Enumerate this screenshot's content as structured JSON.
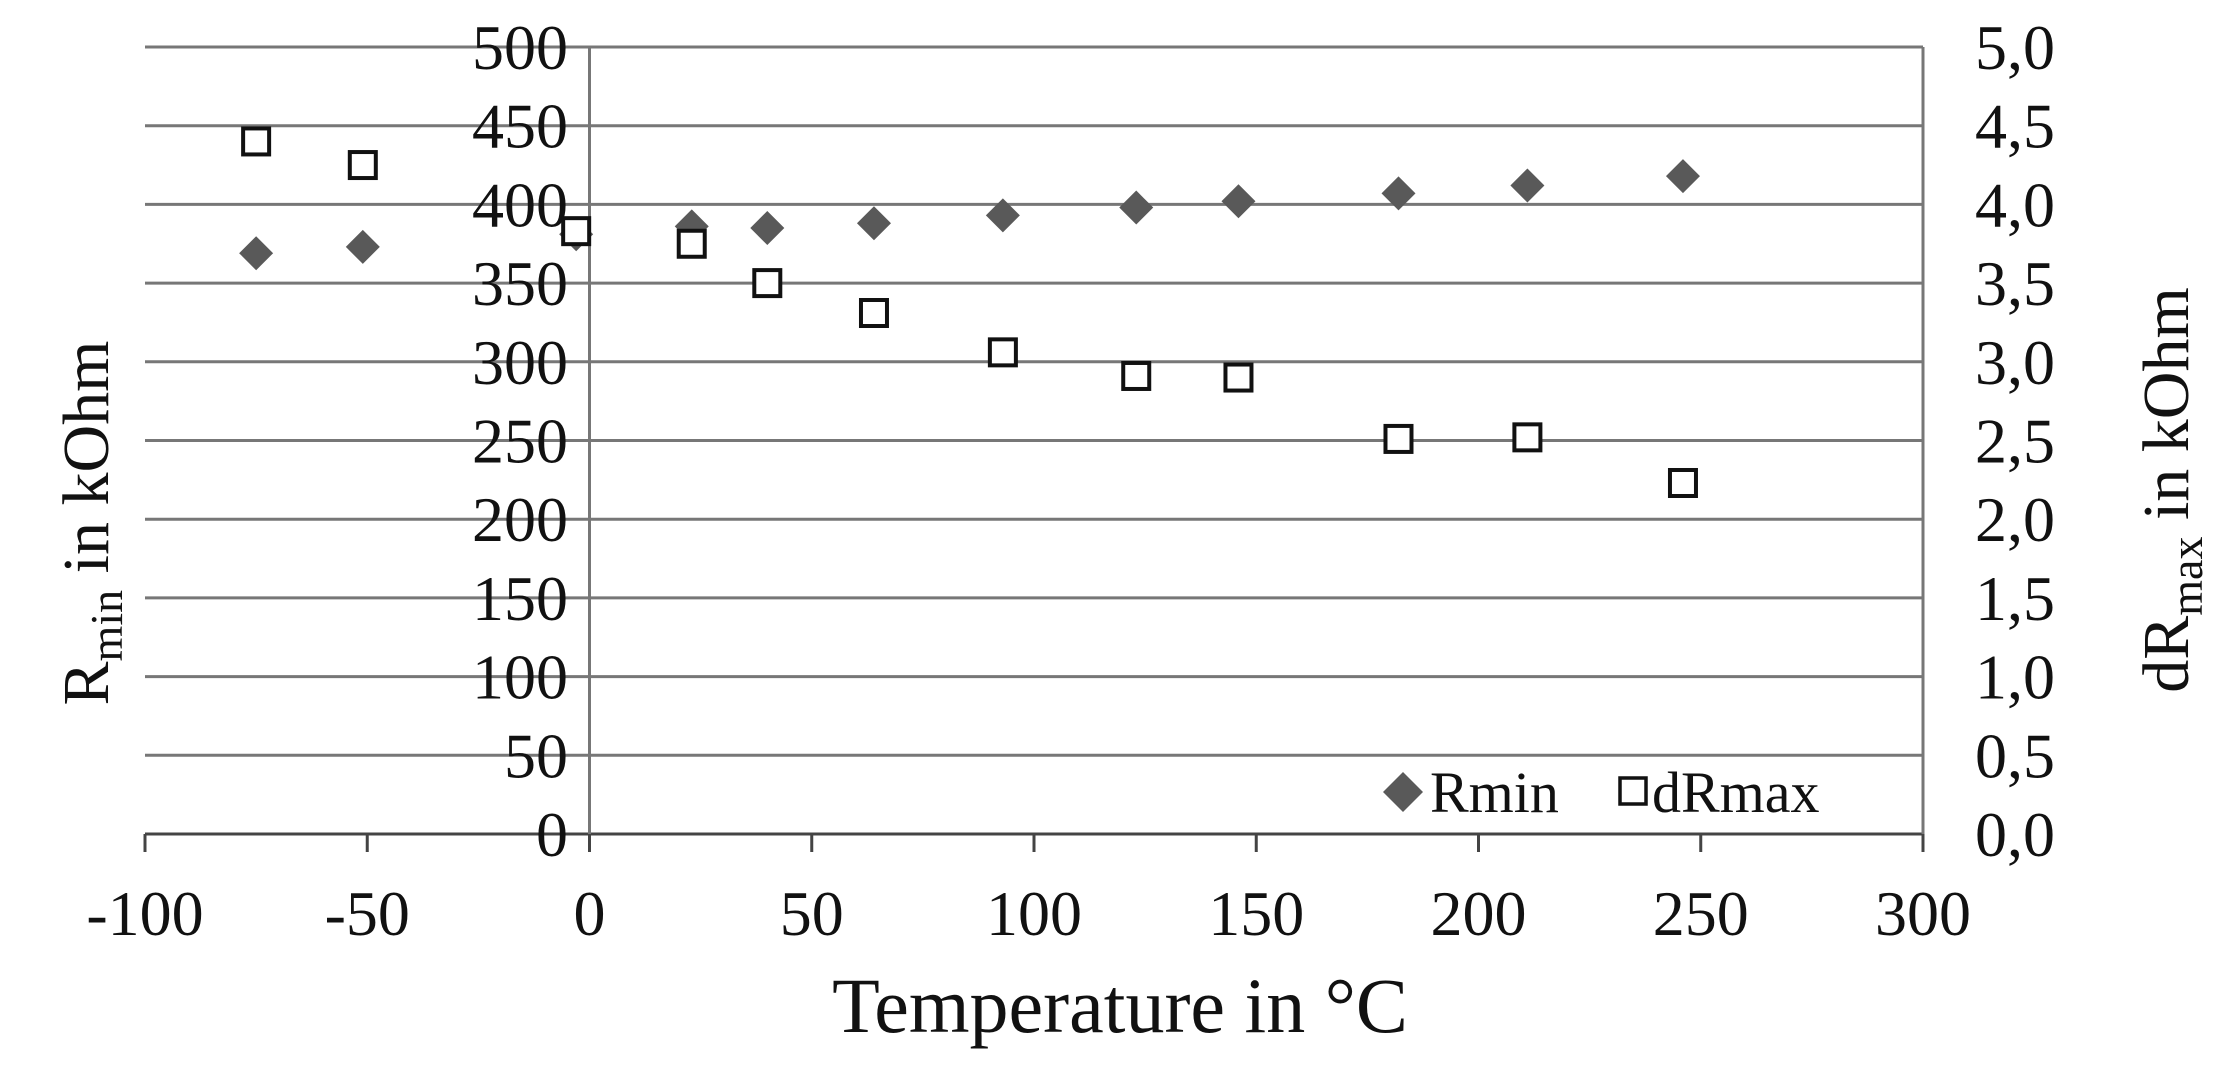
{
  "chart_data": {
    "type": "scatter",
    "xlabel": "Temperature in °C",
    "ylabel": {
      "main": "R",
      "sub": "min",
      "rest": " in kOhm"
    },
    "y2label": {
      "main": "dR",
      "sub": "max",
      "rest": " in kOhm"
    },
    "xlim": [
      -100,
      300
    ],
    "ylim": [
      0,
      500
    ],
    "y2lim": [
      0,
      5
    ],
    "x_ticks": [
      "-100",
      "-50",
      "0",
      "50",
      "100",
      "150",
      "200",
      "250",
      "300"
    ],
    "y_ticks": [
      "0",
      "50",
      "100",
      "150",
      "200",
      "250",
      "300",
      "350",
      "400",
      "450",
      "500"
    ],
    "y2_ticks": [
      "0,0",
      "0,5",
      "1,0",
      "1,5",
      "2,0",
      "2,5",
      "3,0",
      "3,5",
      "4,0",
      "4,5",
      "5,0"
    ],
    "grid": "horizontal",
    "legend_position": "bottom-right",
    "series": [
      {
        "name": "Rmin",
        "axis": "left",
        "marker": "diamond",
        "color": "#595959",
        "points": [
          [
            -75,
            369
          ],
          [
            -51,
            373
          ],
          [
            -3,
            381
          ],
          [
            23,
            386
          ],
          [
            40,
            385
          ],
          [
            64,
            388
          ],
          [
            93,
            393
          ],
          [
            123,
            398
          ],
          [
            146,
            402
          ],
          [
            182,
            407
          ],
          [
            211,
            412
          ],
          [
            246,
            418
          ]
        ]
      },
      {
        "name": "dRmax",
        "axis": "right",
        "marker": "square-open",
        "color": "#111111",
        "points": [
          [
            -75,
            4.4
          ],
          [
            -51,
            4.25
          ],
          [
            -3,
            3.83
          ],
          [
            23,
            3.75
          ],
          [
            40,
            3.5
          ],
          [
            64,
            3.31
          ],
          [
            93,
            3.06
          ],
          [
            123,
            2.91
          ],
          [
            146,
            2.9
          ],
          [
            182,
            2.51
          ],
          [
            211,
            2.52
          ],
          [
            246,
            2.23
          ]
        ]
      }
    ]
  }
}
